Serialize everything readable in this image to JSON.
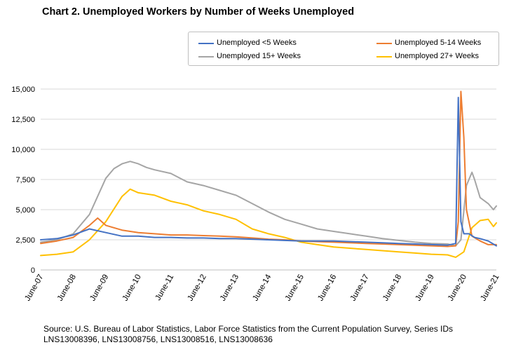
{
  "title": "Chart 2. Unemployed Workers by Number of Weeks Unemployed",
  "source": "Source: U.S. Bureau of Labor Statistics, Labor Force Statistics from the Current Population Survey, Series IDs LNS13008396, LNS13008756, LNS13008516, LNS13008636",
  "chart_data": {
    "type": "line",
    "title": "Chart 2. Unemployed Workers by Number of Weeks Unemployed",
    "xlabel": "",
    "ylabel": "",
    "ylim": [
      0,
      15000
    ],
    "yticks": [
      0,
      2500,
      5000,
      7500,
      10000,
      12500,
      15000
    ],
    "ytick_labels": [
      "0",
      "2,500",
      "5,000",
      "7,500",
      "10,000",
      "12,500",
      "15,000"
    ],
    "xtick_labels": [
      "June-07",
      "June-08",
      "June-09",
      "June-10",
      "June-11",
      "June-12",
      "June-13",
      "June-14",
      "June-15",
      "June-16",
      "June-17",
      "June-18",
      "June-19",
      "June-20",
      "June-21"
    ],
    "grid": "horizontal",
    "legend_position": "top-right",
    "series": [
      {
        "name": "Unemployed <5 Weeks",
        "color": "#4472C4",
        "x": [
          2007.42,
          2007.92,
          2008.42,
          2008.92,
          2009.42,
          2009.92,
          2010.42,
          2010.92,
          2011.42,
          2011.92,
          2012.42,
          2012.92,
          2013.42,
          2013.92,
          2014.42,
          2014.92,
          2015.42,
          2015.92,
          2016.42,
          2016.92,
          2017.42,
          2017.92,
          2018.42,
          2018.92,
          2019.42,
          2019.92,
          2020.17,
          2020.25,
          2020.33,
          2020.42,
          2020.58,
          2020.75,
          2020.92,
          2021.17,
          2021.42
        ],
        "values": [
          2500,
          2600,
          2900,
          3400,
          3100,
          2800,
          2800,
          2700,
          2700,
          2650,
          2650,
          2600,
          2600,
          2550,
          2500,
          2450,
          2400,
          2400,
          2400,
          2350,
          2300,
          2250,
          2200,
          2150,
          2100,
          2050,
          2200,
          14300,
          4000,
          3000,
          3000,
          2700,
          2600,
          2400,
          2000
        ]
      },
      {
        "name": "Unemployed 5-14 Weeks",
        "color": "#ED7D31",
        "x": [
          2007.42,
          2007.92,
          2008.42,
          2008.92,
          2009.17,
          2009.42,
          2009.92,
          2010.42,
          2010.92,
          2011.42,
          2011.92,
          2012.42,
          2012.92,
          2013.42,
          2013.92,
          2014.42,
          2014.92,
          2015.42,
          2015.92,
          2016.42,
          2016.92,
          2017.42,
          2017.92,
          2018.42,
          2018.92,
          2019.42,
          2019.92,
          2020.17,
          2020.25,
          2020.33,
          2020.42,
          2020.5,
          2020.67,
          2020.92,
          2021.17,
          2021.42
        ],
        "values": [
          2200,
          2400,
          2700,
          3700,
          4300,
          3700,
          3300,
          3100,
          3000,
          2900,
          2900,
          2850,
          2800,
          2750,
          2650,
          2550,
          2500,
          2400,
          2350,
          2300,
          2250,
          2200,
          2150,
          2100,
          2050,
          2000,
          1950,
          2000,
          4000,
          14800,
          11000,
          5000,
          2800,
          2400,
          2100,
          2100
        ]
      },
      {
        "name": "Unemployed 15+ Weeks",
        "color": "#A5A5A5",
        "x": [
          2007.42,
          2007.92,
          2008.42,
          2008.92,
          2009.42,
          2009.67,
          2009.92,
          2010.17,
          2010.42,
          2010.67,
          2010.92,
          2011.42,
          2011.92,
          2012.42,
          2012.92,
          2013.42,
          2013.92,
          2014.42,
          2014.92,
          2015.42,
          2015.92,
          2016.42,
          2016.92,
          2017.42,
          2017.92,
          2018.42,
          2018.92,
          2019.42,
          2019.92,
          2020.17,
          2020.33,
          2020.5,
          2020.67,
          2020.75,
          2020.92,
          2021.17,
          2021.33,
          2021.42
        ],
        "values": [
          2300,
          2500,
          3000,
          4600,
          7600,
          8400,
          8800,
          9000,
          8800,
          8500,
          8300,
          8000,
          7300,
          7000,
          6600,
          6200,
          5500,
          4800,
          4200,
          3800,
          3400,
          3200,
          3000,
          2800,
          2600,
          2450,
          2300,
          2200,
          2150,
          2000,
          2500,
          7000,
          8100,
          7500,
          6000,
          5500,
          5000,
          5300
        ]
      },
      {
        "name": "Unemployed 27+ Weeks",
        "color": "#FFC000",
        "x": [
          2007.42,
          2007.92,
          2008.42,
          2008.92,
          2009.42,
          2009.92,
          2010.17,
          2010.42,
          2010.92,
          2011.42,
          2011.92,
          2012.42,
          2012.92,
          2013.42,
          2013.92,
          2014.42,
          2014.92,
          2015.42,
          2015.92,
          2016.42,
          2016.92,
          2017.42,
          2017.92,
          2018.42,
          2018.92,
          2019.42,
          2019.92,
          2020.17,
          2020.42,
          2020.67,
          2020.92,
          2021.17,
          2021.33,
          2021.42
        ],
        "values": [
          1200,
          1300,
          1500,
          2500,
          4000,
          6100,
          6700,
          6400,
          6200,
          5700,
          5400,
          4900,
          4600,
          4200,
          3400,
          3000,
          2700,
          2300,
          2100,
          1900,
          1800,
          1700,
          1600,
          1500,
          1400,
          1300,
          1250,
          1050,
          1500,
          3500,
          4100,
          4200,
          3600,
          3900
        ]
      }
    ]
  }
}
